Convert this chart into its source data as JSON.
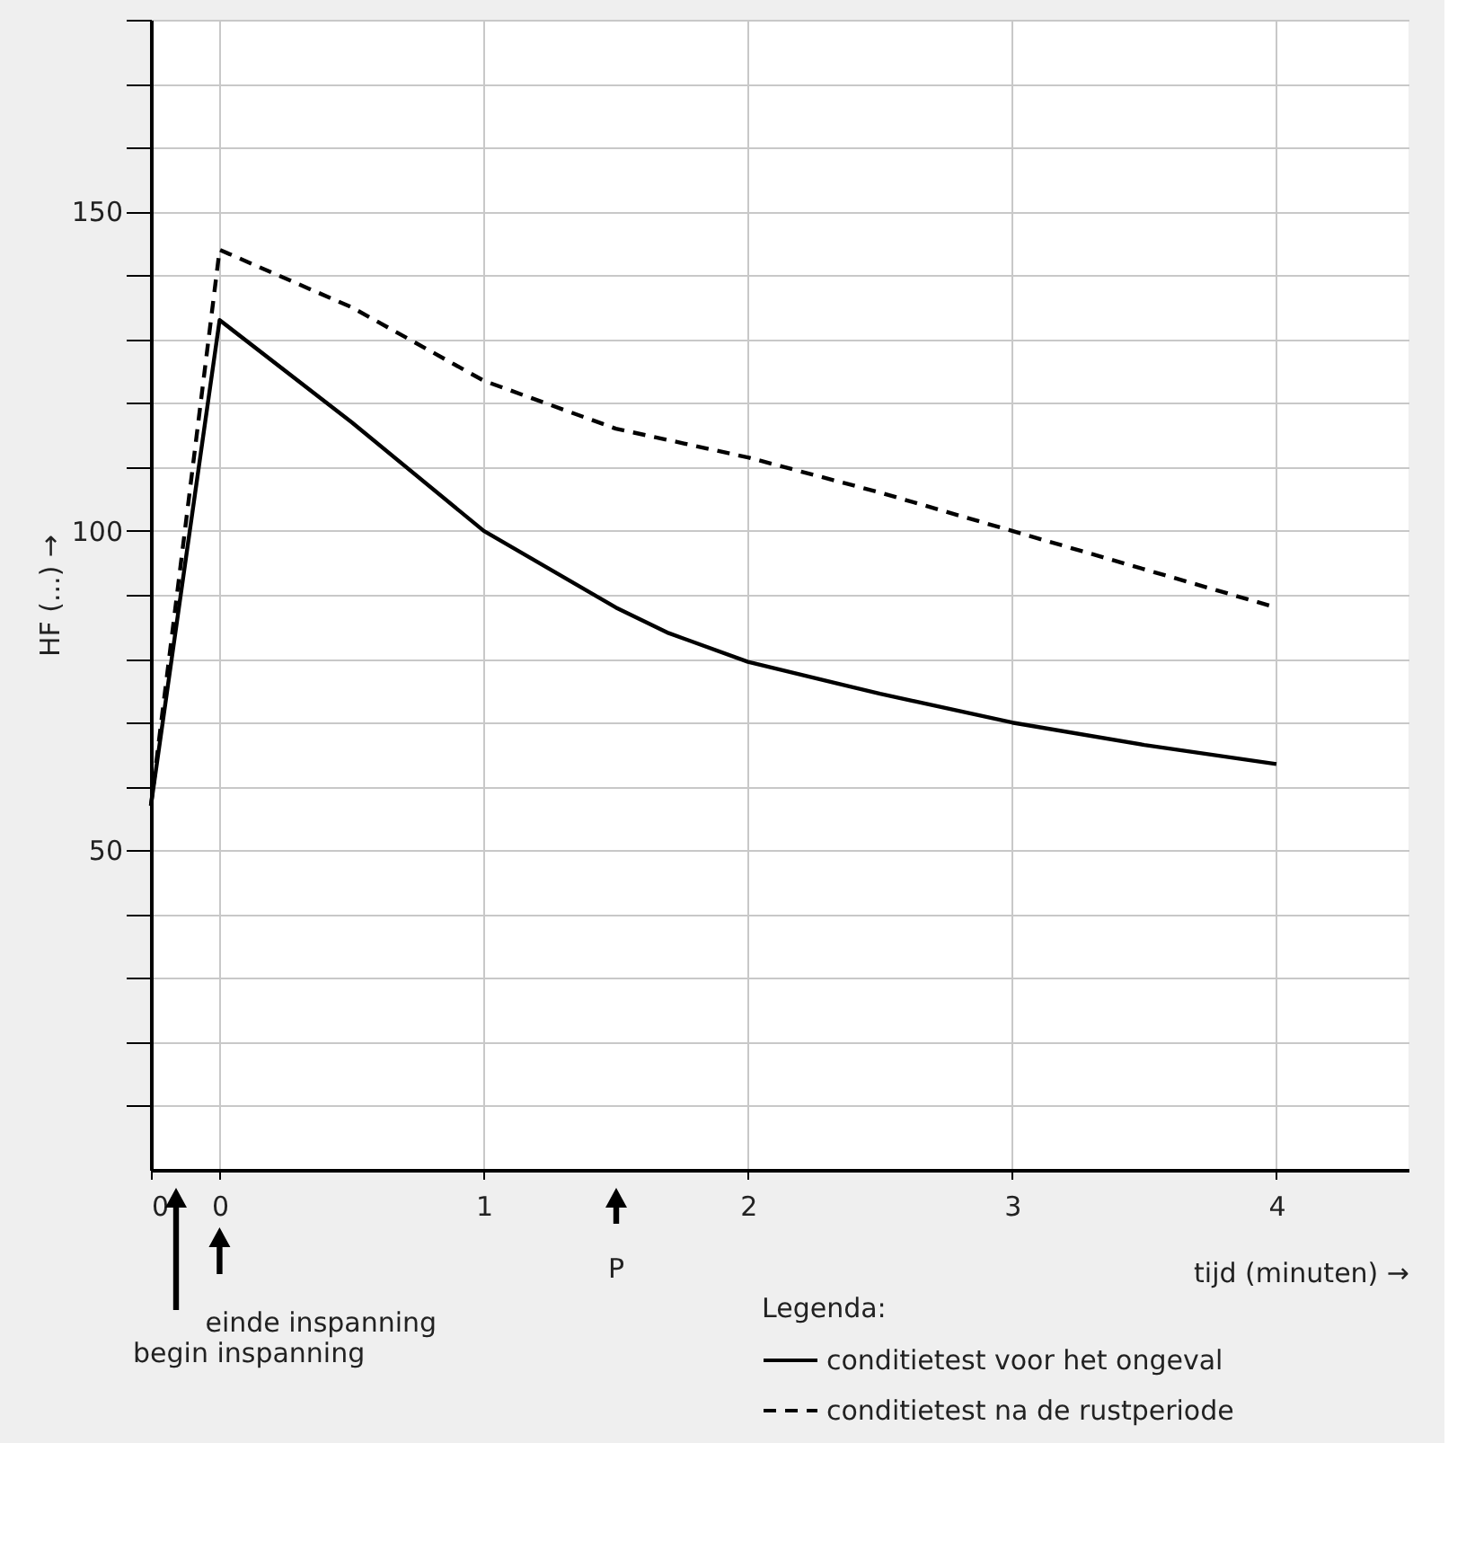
{
  "chart_data": {
    "type": "line",
    "xlabel": "tijd (minuten) →",
    "ylabel": "HF (...) →",
    "legend_title": "Legenda:",
    "series": [
      {
        "name": "conditietest voor het ongeval",
        "color": "#000000",
        "line_style": "solid",
        "x": [
          -0.26,
          0,
          0.5,
          1,
          1.5,
          1.7,
          2,
          2.5,
          3,
          3.5,
          4
        ],
        "values": [
          57,
          133,
          117,
          100,
          88,
          84,
          79.5,
          74.5,
          70,
          66.5,
          63.5
        ]
      },
      {
        "name": "conditietest na de rustperiode",
        "color": "#000000",
        "line_style": "dashed",
        "x": [
          -0.26,
          0,
          0.5,
          1,
          1.5,
          2,
          2.5,
          3,
          3.5,
          4
        ],
        "values": [
          57,
          144,
          135,
          123.5,
          116,
          111.5,
          106,
          100,
          94,
          88
        ]
      }
    ],
    "xlim": [
      -0.26,
      4.5
    ],
    "ylim": [
      0,
      180
    ],
    "xticks": [
      {
        "value": -0.26,
        "label": "0"
      },
      0,
      1,
      2,
      3,
      4
    ],
    "yticks": [
      {
        "value": 10,
        "label": null
      },
      {
        "value": 20,
        "label": null
      },
      {
        "value": 30,
        "label": null
      },
      {
        "value": 40,
        "label": null
      },
      50,
      {
        "value": 60,
        "label": null
      },
      {
        "value": 70,
        "label": null
      },
      {
        "value": 80,
        "label": null
      },
      {
        "value": 90,
        "label": null
      },
      100,
      {
        "value": 110,
        "label": null
      },
      {
        "value": 120,
        "label": null
      },
      {
        "value": 130,
        "label": null
      },
      {
        "value": 140,
        "label": null
      },
      150,
      {
        "value": 160,
        "label": null
      },
      {
        "value": 170,
        "label": null
      },
      {
        "value": 180,
        "label": null
      }
    ],
    "annotations": [
      "begin inspanning",
      "einde inspanning",
      "P"
    ],
    "grid": true,
    "legend": "bottom right",
    "marker": "none"
  }
}
